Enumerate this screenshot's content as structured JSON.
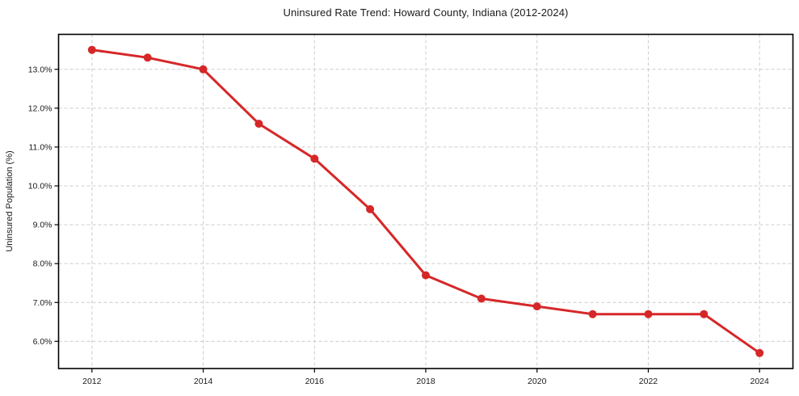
{
  "chart_data": {
    "type": "line",
    "title": "Uninsured Rate Trend: Howard County, Indiana (2012-2024)",
    "xlabel": "",
    "ylabel": "Uninsured Population (%)",
    "x": [
      2012,
      2013,
      2014,
      2015,
      2016,
      2017,
      2018,
      2019,
      2020,
      2021,
      2022,
      2023,
      2024
    ],
    "values": [
      13.5,
      13.3,
      13.0,
      11.6,
      10.7,
      9.4,
      7.7,
      7.1,
      6.9,
      6.7,
      6.7,
      6.7,
      5.7
    ],
    "xlim": [
      2011.4,
      2024.6
    ],
    "ylim": [
      5.3,
      13.9
    ],
    "x_ticks": [
      2012,
      2014,
      2016,
      2018,
      2020,
      2022,
      2024
    ],
    "x_tick_labels": [
      "2012",
      "2014",
      "2016",
      "2018",
      "2020",
      "2022",
      "2024"
    ],
    "y_ticks": [
      6,
      7,
      8,
      9,
      10,
      11,
      12,
      13
    ],
    "y_tick_labels": [
      "6.0%",
      "7.0%",
      "8.0%",
      "9.0%",
      "10.0%",
      "11.0%",
      "12.0%",
      "13.0%"
    ],
    "grid": true,
    "legend": "none",
    "colors": {
      "line": "#d62728",
      "marker": "#d62728",
      "grid": "#cccccc",
      "spine": "#000000",
      "text": "#1a1a1a",
      "background": "#ffffff"
    },
    "style": {
      "line_width": 3,
      "marker_radius": 5,
      "grid_dash": "4 3"
    }
  }
}
